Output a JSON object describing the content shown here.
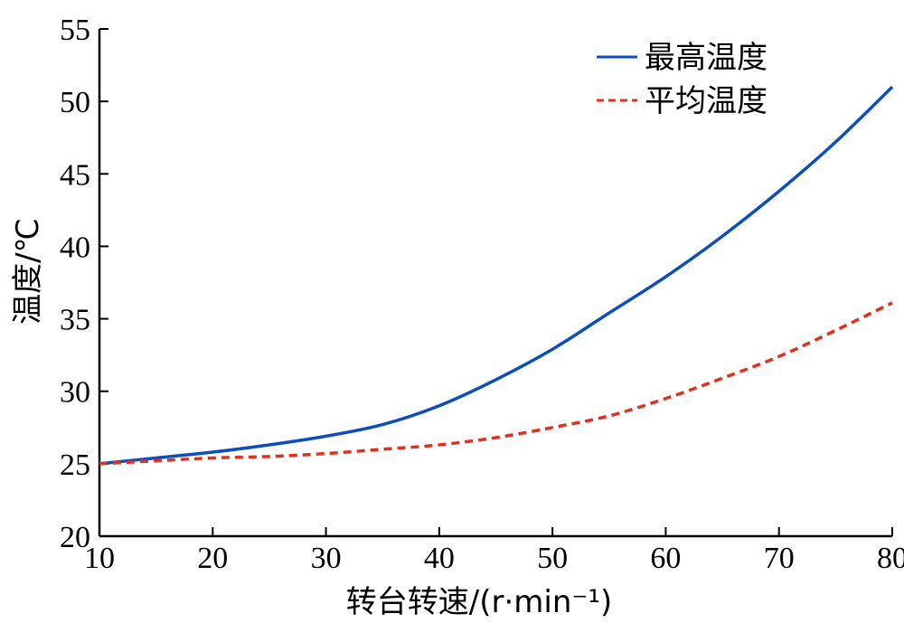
{
  "chart_data": {
    "type": "line",
    "xlabel": "转台转速/(r·min⁻¹)",
    "ylabel": "温度/℃",
    "xlim": [
      10,
      80
    ],
    "ylim": [
      20,
      55
    ],
    "xticks": [
      10,
      20,
      30,
      40,
      50,
      60,
      70,
      80
    ],
    "yticks": [
      20,
      25,
      30,
      35,
      40,
      45,
      50,
      55
    ],
    "grid": false,
    "legend_position": "top-right",
    "series": [
      {
        "name": "最高温度",
        "color": "#0b4fbf",
        "style": "solid",
        "x": [
          10,
          15,
          20,
          25,
          30,
          35,
          40,
          45,
          50,
          55,
          60,
          65,
          70,
          75,
          80
        ],
        "y": [
          25.0,
          25.4,
          25.8,
          26.3,
          26.9,
          27.7,
          29.0,
          30.8,
          32.9,
          35.4,
          37.9,
          40.7,
          43.8,
          47.2,
          51.0
        ]
      },
      {
        "name": "平均温度",
        "color": "#e0301e",
        "style": "dashed",
        "x": [
          10,
          15,
          20,
          25,
          30,
          35,
          40,
          45,
          50,
          55,
          60,
          65,
          70,
          75,
          80
        ],
        "y": [
          25.0,
          25.2,
          25.4,
          25.5,
          25.7,
          26.0,
          26.3,
          26.8,
          27.5,
          28.3,
          29.5,
          30.9,
          32.4,
          34.2,
          36.1
        ]
      }
    ]
  }
}
